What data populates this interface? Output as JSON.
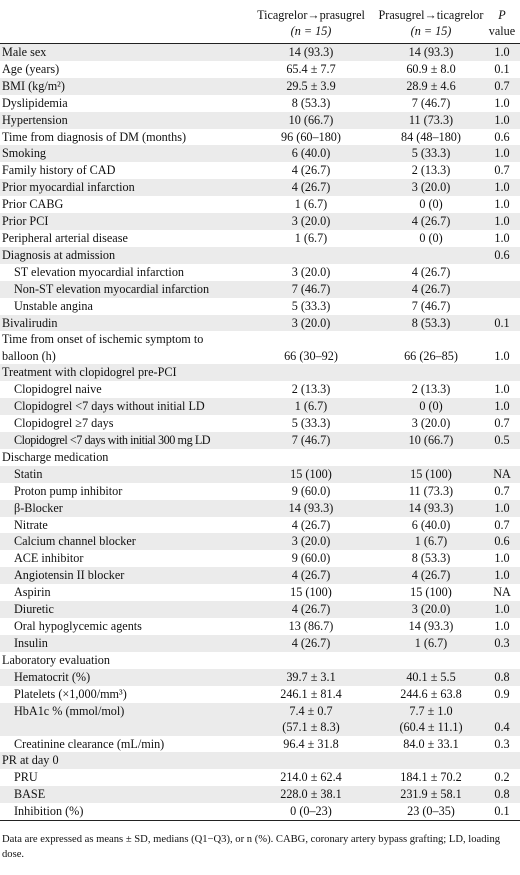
{
  "header": {
    "col1": "Ticagrelor→prasugrel",
    "col1_n": "(n = 15)",
    "col2": "Prasugrel→ticagrelor",
    "col2_n": "(n = 15)",
    "col3": "P",
    "col3b": "value"
  },
  "rows": [
    {
      "label": "Male sex",
      "v1": "14 (93.3)",
      "v2": "14 (93.3)",
      "p": "1.0"
    },
    {
      "label": "Age (years)",
      "v1": "65.4 ± 7.7",
      "v2": "60.9 ± 8.0",
      "p": "0.1"
    },
    {
      "label": "BMI (kg/m²)",
      "v1": "29.5 ± 3.9",
      "v2": "28.9 ± 4.6",
      "p": "0.7"
    },
    {
      "label": "Dyslipidemia",
      "v1": "8 (53.3)",
      "v2": "7 (46.7)",
      "p": "1.0"
    },
    {
      "label": "Hypertension",
      "v1": "10 (66.7)",
      "v2": "11 (73.3)",
      "p": "1.0"
    },
    {
      "label": "Time from diagnosis of DM (months)",
      "v1": "96 (60–180)",
      "v2": "84 (48–180)",
      "p": "0.6"
    },
    {
      "label": "Smoking",
      "v1": "6 (40.0)",
      "v2": "5 (33.3)",
      "p": "1.0"
    },
    {
      "label": "Family history of CAD",
      "v1": "4 (26.7)",
      "v2": "2 (13.3)",
      "p": "0.7"
    },
    {
      "label": "Prior myocardial infarction",
      "v1": "4 (26.7)",
      "v2": "3 (20.0)",
      "p": "1.0"
    },
    {
      "label": "Prior CABG",
      "v1": "1 (6.7)",
      "v2": "0 (0)",
      "p": "1.0"
    },
    {
      "label": "Prior PCI",
      "v1": "3 (20.0)",
      "v2": "4 (26.7)",
      "p": "1.0"
    },
    {
      "label": "Peripheral arterial disease",
      "v1": "1 (6.7)",
      "v2": "0 (0)",
      "p": "1.0"
    },
    {
      "label": "Diagnosis at admission",
      "v1": "",
      "v2": "",
      "p": "0.6"
    },
    {
      "label": "ST elevation myocardial infarction",
      "v1": "3 (20.0)",
      "v2": "4 (26.7)",
      "p": "",
      "indent": true
    },
    {
      "label": "Non-ST elevation myocardial infarction",
      "v1": "7 (46.7)",
      "v2": "4 (26.7)",
      "p": "",
      "indent": true
    },
    {
      "label": "Unstable angina",
      "v1": "5 (33.3)",
      "v2": "7 (46.7)",
      "p": "",
      "indent": true
    },
    {
      "label": "Bivalirudin",
      "v1": "3 (20.0)",
      "v2": "8 (53.3)",
      "p": "0.1"
    },
    {
      "label": "Time from onset of ischemic symptom to",
      "label2": "balloon (h)",
      "v1": "66 (30–92)",
      "v2": "66 (26–85)",
      "p": "1.0"
    },
    {
      "label": "Treatment with clopidogrel pre-PCI",
      "v1": "",
      "v2": "",
      "p": ""
    },
    {
      "label": "Clopidogrel naive",
      "v1": "2 (13.3)",
      "v2": "2 (13.3)",
      "p": "1.0",
      "indent": true
    },
    {
      "label": "Clopidogrel <7 days without initial LD",
      "v1": "1 (6.7)",
      "v2": "0 (0)",
      "p": "1.0",
      "indent": true
    },
    {
      "label": "Clopidogrel ≥7 days",
      "v1": "5 (33.3)",
      "v2": "3 (20.0)",
      "p": "0.7",
      "indent": true
    },
    {
      "label": "Clopidogrel <7 days with initial 300 mg LD",
      "v1": "7 (46.7)",
      "v2": "10 (66.7)",
      "p": "0.5",
      "indent": true,
      "tight": true
    },
    {
      "label": "Discharge medication",
      "v1": "",
      "v2": "",
      "p": ""
    },
    {
      "label": "Statin",
      "v1": "15 (100)",
      "v2": "15 (100)",
      "p": "NA",
      "indent": true
    },
    {
      "label": "Proton pump inhibitor",
      "v1": "9 (60.0)",
      "v2": "11 (73.3)",
      "p": "0.7",
      "indent": true
    },
    {
      "label": "β-Blocker",
      "v1": "14 (93.3)",
      "v2": "14 (93.3)",
      "p": "1.0",
      "indent": true
    },
    {
      "label": "Nitrate",
      "v1": "4 (26.7)",
      "v2": "6 (40.0)",
      "p": "0.7",
      "indent": true
    },
    {
      "label": "Calcium channel blocker",
      "v1": "3 (20.0)",
      "v2": "1 (6.7)",
      "p": "0.6",
      "indent": true
    },
    {
      "label": "ACE inhibitor",
      "v1": "9 (60.0)",
      "v2": "8 (53.3)",
      "p": "1.0",
      "indent": true
    },
    {
      "label": "Angiotensin II blocker",
      "v1": "4 (26.7)",
      "v2": "4 (26.7)",
      "p": "1.0",
      "indent": true
    },
    {
      "label": "Aspirin",
      "v1": "15 (100)",
      "v2": "15 (100)",
      "p": "NA",
      "indent": true
    },
    {
      "label": "Diuretic",
      "v1": "4 (26.7)",
      "v2": "3 (20.0)",
      "p": "1.0",
      "indent": true
    },
    {
      "label": "Oral hypoglycemic agents",
      "v1": "13 (86.7)",
      "v2": "14 (93.3)",
      "p": "1.0",
      "indent": true
    },
    {
      "label": "Insulin",
      "v1": "4 (26.7)",
      "v2": "1 (6.7)",
      "p": "0.3",
      "indent": true
    },
    {
      "label": "Laboratory evaluation",
      "v1": "",
      "v2": "",
      "p": ""
    },
    {
      "label": "Hematocrit (%)",
      "v1": "39.7 ± 3.1",
      "v2": "40.1 ± 5.5",
      "p": "0.8",
      "indent": true
    },
    {
      "label": "Platelets (×1,000/mm³)",
      "v1": "246.1 ± 81.4",
      "v2": "244.6 ± 63.8",
      "p": "0.9",
      "indent": true
    },
    {
      "label": "HbA1c % (mmol/mol)",
      "v1": "7.4 ± 0.7",
      "v1b": "(57.1 ± 8.3)",
      "v2": "7.7 ± 1.0",
      "v2b": "(60.4 ± 11.1)",
      "p": "0.4",
      "indent": true,
      "hba1c": true
    },
    {
      "label": "Creatinine clearance (mL/min)",
      "v1": "96.4 ± 31.8",
      "v2": "84.0 ± 33.1",
      "p": "0.3",
      "indent": true
    },
    {
      "label": "PR at day 0",
      "v1": "",
      "v2": "",
      "p": ""
    },
    {
      "label": "PRU",
      "v1": "214.0 ± 62.4",
      "v2": "184.1 ± 70.2",
      "p": "0.2",
      "indent": true
    },
    {
      "label": "BASE",
      "v1": "228.0 ± 38.1",
      "v2": "231.9 ± 58.1",
      "p": "0.8",
      "indent": true
    },
    {
      "label": "Inhibition (%)",
      "v1": "0 (0–23)",
      "v2": "23 (0–35)",
      "p": "0.1",
      "indent": true
    }
  ],
  "footnote": "Data are expressed as means ± SD, medians (Q1−Q3), or n (%). CABG, coronary artery bypass grafting; LD, loading dose."
}
